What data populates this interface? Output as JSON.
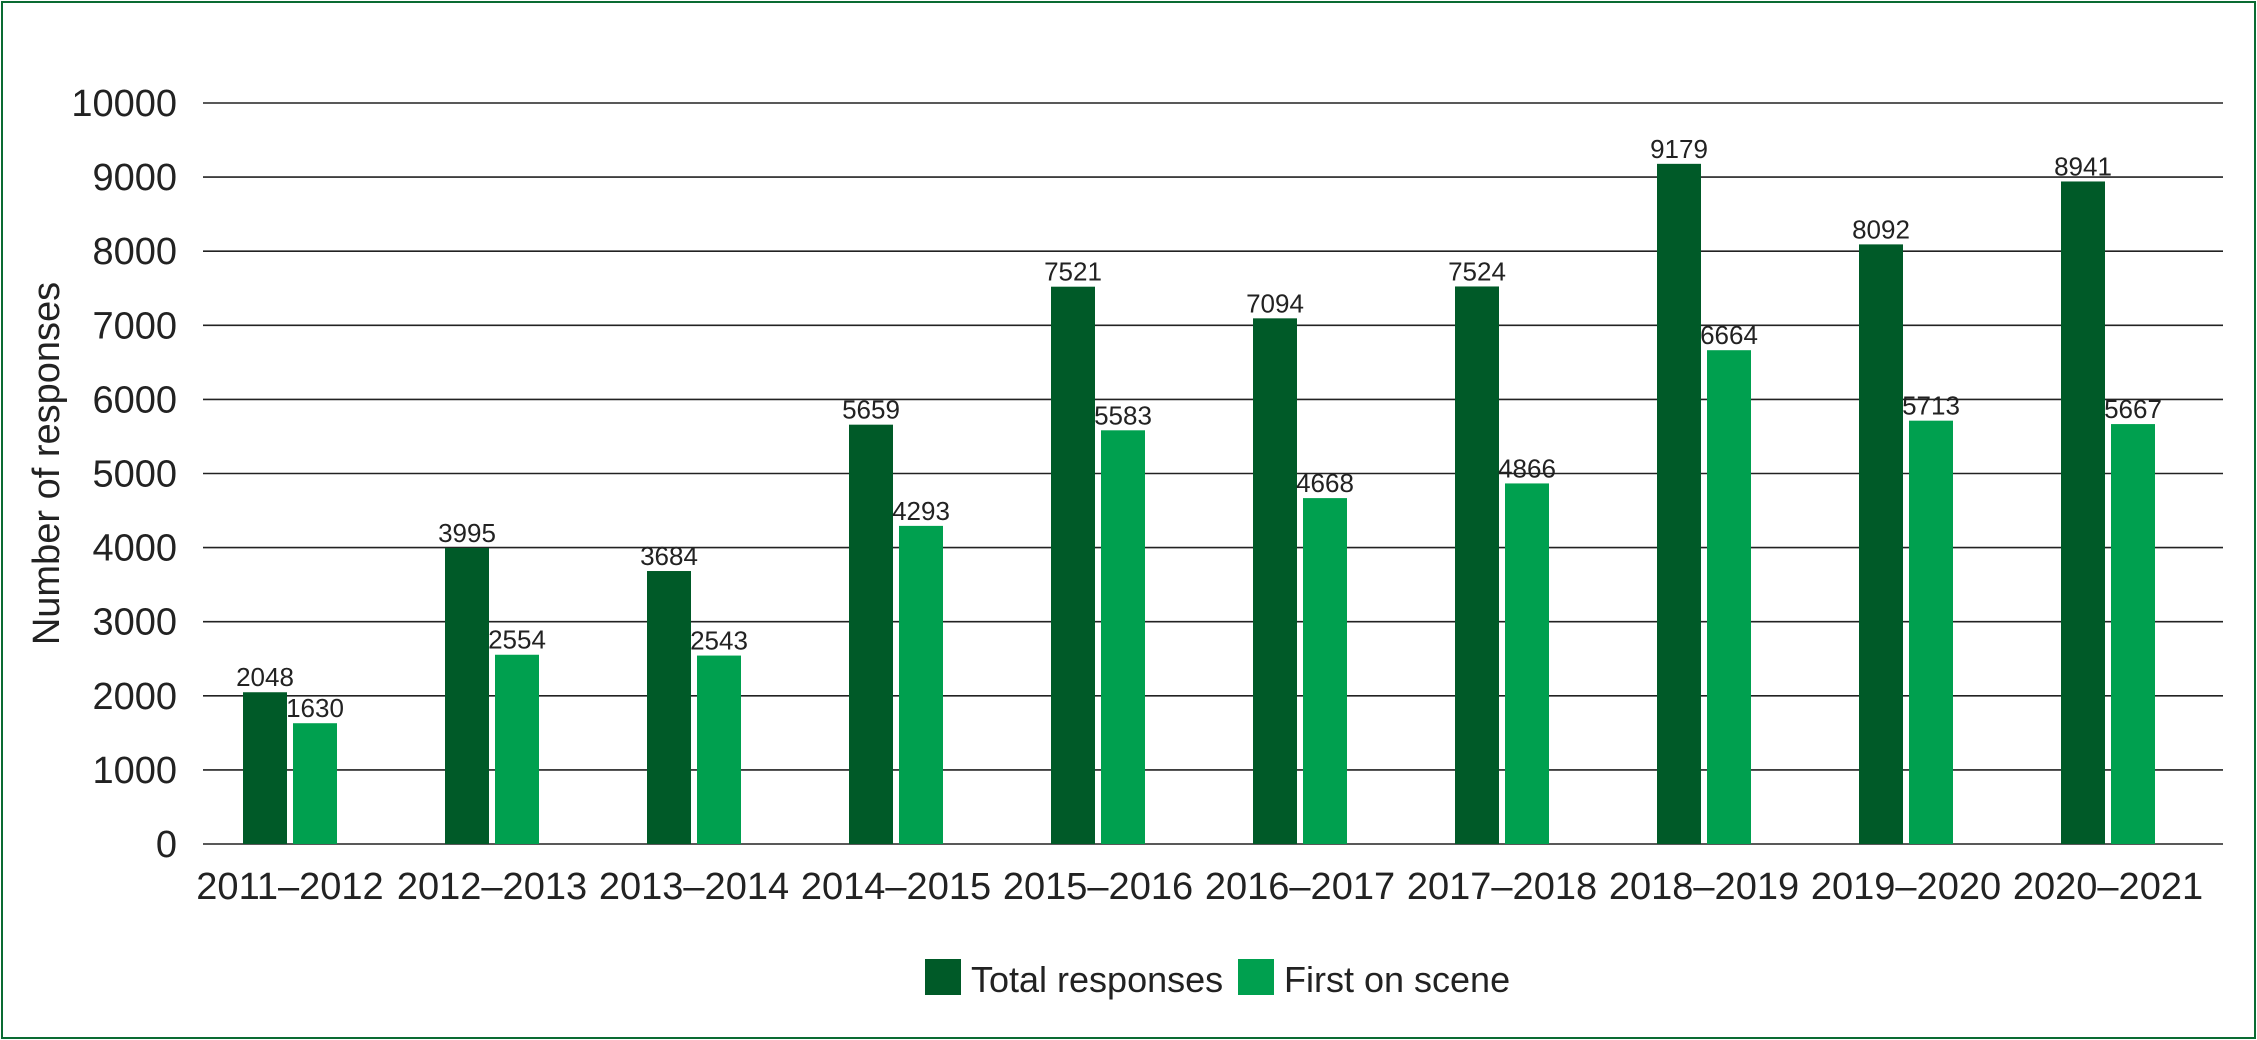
{
  "chart_data": {
    "type": "bar",
    "title": "",
    "xlabel": "",
    "ylabel": "Number of responses",
    "ylim": [
      0,
      10000
    ],
    "yticks": [
      0,
      1000,
      2000,
      3000,
      4000,
      5000,
      6000,
      7000,
      8000,
      9000,
      10000
    ],
    "grid": true,
    "legend_position": "bottom",
    "categories": [
      "2011–2012",
      "2012–2013",
      "2013–2014",
      "2014–2015",
      "2015–2016",
      "2016–2017",
      "2017–2018",
      "2018–2019",
      "2019–2020",
      "2020–2021"
    ],
    "series": [
      {
        "name": "Total responses",
        "color": "#005a28",
        "values": [
          2048,
          3995,
          3684,
          5659,
          7521,
          7094,
          7524,
          9179,
          8092,
          8941
        ]
      },
      {
        "name": "First on scene",
        "color": "#00a04f",
        "values": [
          1630,
          2554,
          2543,
          4293,
          5583,
          4668,
          4866,
          6664,
          5713,
          5667
        ]
      }
    ]
  }
}
